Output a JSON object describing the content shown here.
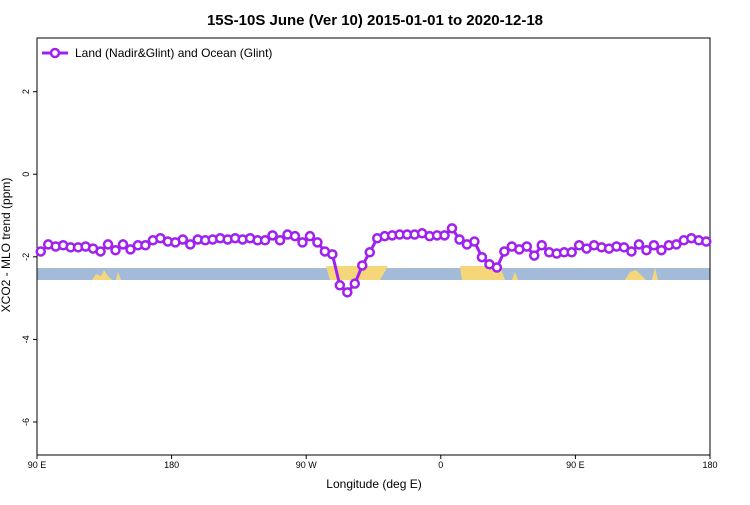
{
  "chart_data": {
    "type": "line",
    "title": "15S-10S June (Ver 10)   2015-01-01 to 2020-12-18",
    "x_label": "Longitude (deg E)",
    "y_label": "XCO2 - MLO trend (ppm)",
    "x": [
      92.5,
      97.5,
      102.5,
      107.5,
      112.5,
      117.5,
      122.5,
      127.5,
      132.5,
      137.5,
      142.5,
      147.5,
      152.5,
      157.5,
      162.5,
      167.5,
      172.5,
      177.5,
      182.5,
      187.5,
      192.5,
      197.5,
      202.5,
      207.5,
      212.5,
      217.5,
      222.5,
      227.5,
      232.5,
      237.5,
      242.5,
      247.5,
      252.5,
      257.5,
      262.5,
      267.5,
      272.5,
      277.5,
      282.5,
      287.5,
      292.5,
      297.5,
      302.5,
      307.5,
      312.5,
      317.5,
      322.5,
      327.5,
      332.5,
      337.5,
      342.5,
      347.5,
      352.5,
      357.5,
      362.5,
      367.5,
      372.5,
      377.5,
      382.5,
      387.5,
      392.5,
      397.5,
      402.5,
      407.5,
      412.5,
      417.5,
      422.5,
      427.5,
      432.5,
      437.5,
      442.5,
      447.5,
      452.5,
      457.5,
      462.5,
      467.5,
      472.5,
      477.5,
      482.5,
      487.5,
      492.5,
      497.5,
      502.5,
      507.5,
      512.5,
      517.5,
      522.5,
      527.5,
      532.5,
      537.5
    ],
    "series": [
      {
        "name": "Land (Nadir&Glint) and Ocean (Glint)",
        "color": "#a020f0",
        "values": [
          -1.87,
          -1.7,
          -1.75,
          -1.72,
          -1.77,
          -1.77,
          -1.75,
          -1.8,
          -1.87,
          -1.7,
          -1.84,
          -1.7,
          -1.82,
          -1.72,
          -1.72,
          -1.6,
          -1.55,
          -1.63,
          -1.65,
          -1.58,
          -1.7,
          -1.58,
          -1.6,
          -1.58,
          -1.55,
          -1.58,
          -1.55,
          -1.58,
          -1.55,
          -1.6,
          -1.6,
          -1.48,
          -1.6,
          -1.46,
          -1.5,
          -1.65,
          -1.5,
          -1.65,
          -1.87,
          -1.94,
          -2.69,
          -2.86,
          -2.65,
          -2.21,
          -1.89,
          -1.55,
          -1.5,
          -1.48,
          -1.46,
          -1.46,
          -1.46,
          -1.43,
          -1.5,
          -1.48,
          -1.48,
          -1.31,
          -1.58,
          -1.7,
          -1.63,
          -2.01,
          -2.18,
          -2.26,
          -1.87,
          -1.75,
          -1.82,
          -1.75,
          -1.97,
          -1.72,
          -1.89,
          -1.92,
          -1.89,
          -1.89,
          -1.72,
          -1.8,
          -1.72,
          -1.77,
          -1.8,
          -1.75,
          -1.77,
          -1.87,
          -1.7,
          -1.84,
          -1.72,
          -1.84,
          -1.72,
          -1.7,
          -1.6,
          -1.55,
          -1.6,
          -1.63
        ]
      }
    ],
    "xlim": [
      90,
      540
    ],
    "ylim": [
      -6.8,
      3.3
    ],
    "xticks": [
      {
        "value": 90,
        "label": "90 E"
      },
      180,
      {
        "value": 270,
        "label": "90 W"
      },
      {
        "value": 360,
        "label": "0"
      },
      {
        "value": 450,
        "label": "90 E"
      },
      {
        "value": 540,
        "label": "180"
      }
    ],
    "yticks": [
      -6,
      -4,
      -2,
      0,
      2
    ],
    "legend": "top-left"
  }
}
